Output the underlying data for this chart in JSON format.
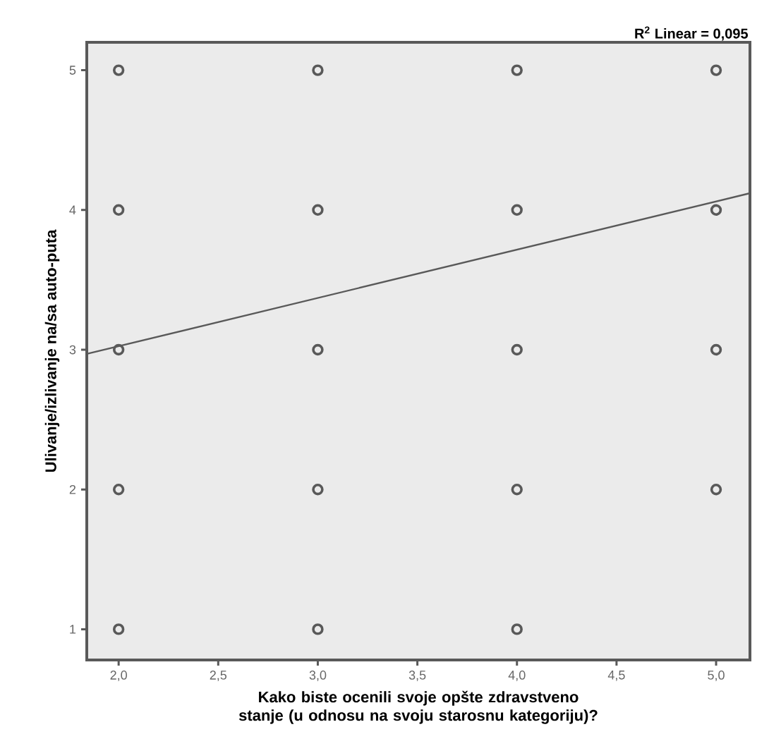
{
  "chart_data": {
    "type": "scatter",
    "xlabel": "Kako biste ocenili svoje opšte zdravstveno stanje (u odnosu na svoju starosnu kategoriju)?",
    "ylabel": "Ulivanje/izlivanje na/sa auto-puta",
    "annotations": [
      "R$^{2}$ Linear = 0,095"
    ],
    "series": [
      {
        "color": "#595959",
        "marker": "circle",
        "x": [
          2,
          2,
          2,
          2,
          2,
          3,
          3,
          3,
          3,
          3,
          4,
          4,
          4,
          4,
          4,
          5,
          5,
          5,
          5
        ],
        "values": [
          5,
          4,
          3,
          2,
          1,
          5,
          4,
          3,
          2,
          1,
          5,
          4,
          3,
          2,
          1,
          5,
          4,
          3,
          2
        ]
      },
      {
        "type": "line",
        "color": "#595959",
        "marker": "none",
        "x": [
          1.84,
          5.17
        ],
        "values": [
          2.97,
          4.12
        ]
      }
    ],
    "xlim": [
      1.84,
      5.17
    ],
    "ylim": [
      0.78,
      5.2
    ],
    "xticks": [
      {
        "value": 2,
        "label": "2,0"
      },
      {
        "value": 2.5,
        "label": "2,5"
      },
      {
        "value": 3,
        "label": "3,0"
      },
      {
        "value": 3.5,
        "label": "3,5"
      },
      {
        "value": 4,
        "label": "4,0"
      },
      {
        "value": 4.5,
        "label": "4,5"
      },
      {
        "value": 5,
        "label": "5,0"
      }
    ],
    "yticks": [
      1,
      2,
      3,
      4,
      5
    ],
    "grid": false
  }
}
